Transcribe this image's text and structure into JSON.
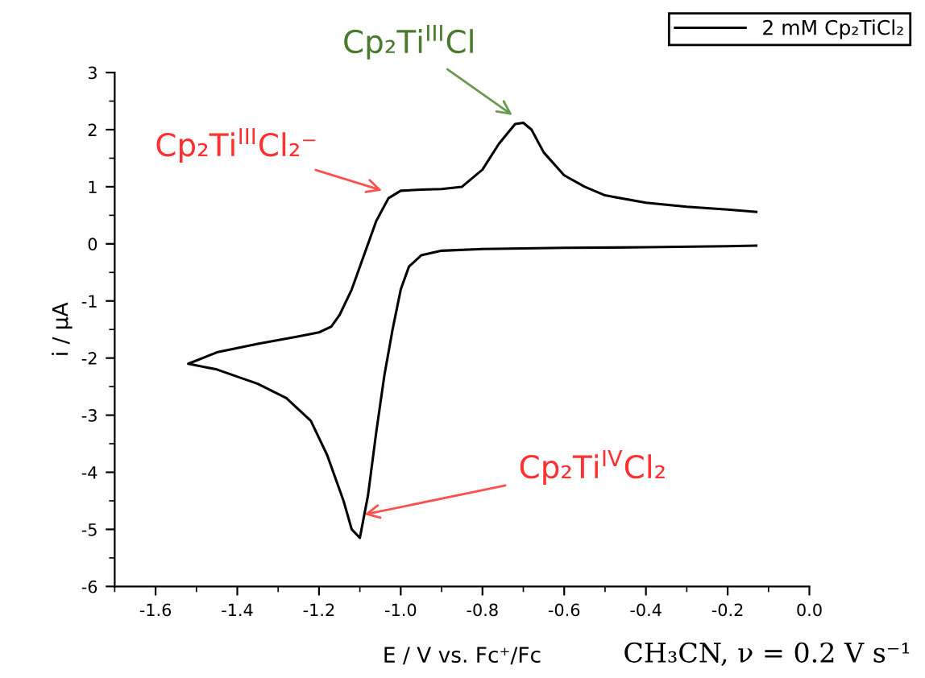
{
  "chart_data": {
    "type": "line",
    "xlabel": "E / V vs. Fc⁺/Fc",
    "ylabel": "i / μA",
    "series": [
      {
        "name": "2 mM Cp₂TiCl₂",
        "color": "#000000",
        "x": [
          -0.13,
          -0.2,
          -0.4,
          -0.6,
          -0.8,
          -0.9,
          -0.95,
          -0.98,
          -1.0,
          -1.02,
          -1.04,
          -1.06,
          -1.08,
          -1.1,
          -1.12,
          -1.14,
          -1.18,
          -1.22,
          -1.28,
          -1.35,
          -1.45,
          -1.52,
          -1.45,
          -1.35,
          -1.25,
          -1.2,
          -1.17,
          -1.15,
          -1.12,
          -1.09,
          -1.06,
          -1.03,
          -1.0,
          -0.95,
          -0.9,
          -0.85,
          -0.8,
          -0.76,
          -0.72,
          -0.7,
          -0.68,
          -0.65,
          -0.6,
          -0.55,
          -0.5,
          -0.4,
          -0.3,
          -0.2,
          -0.13
        ],
        "values": [
          -0.03,
          -0.04,
          -0.06,
          -0.07,
          -0.09,
          -0.12,
          -0.2,
          -0.4,
          -0.8,
          -1.5,
          -2.3,
          -3.3,
          -4.4,
          -5.15,
          -5.0,
          -4.5,
          -3.7,
          -3.1,
          -2.7,
          -2.45,
          -2.2,
          -2.1,
          -1.9,
          -1.75,
          -1.62,
          -1.55,
          -1.45,
          -1.25,
          -0.8,
          -0.2,
          0.4,
          0.8,
          0.93,
          0.95,
          0.96,
          1.0,
          1.3,
          1.75,
          2.1,
          2.12,
          2.0,
          1.6,
          1.2,
          1.0,
          0.85,
          0.72,
          0.65,
          0.6,
          0.56
        ]
      }
    ],
    "xlim": [
      -1.7,
      0.0
    ],
    "xticks": [
      -1.6,
      -1.4,
      -1.2,
      {
        "value": -1.0,
        "label": "-1.0"
      },
      -0.8,
      -0.6,
      -0.4,
      -0.2,
      {
        "value": 0.0,
        "label": "0.0"
      }
    ],
    "ylim": [
      -6,
      3
    ],
    "yticks": [
      -6,
      -5,
      -4,
      -3,
      -2,
      -1,
      0,
      1,
      2,
      3
    ],
    "legend": "top right",
    "grid": false,
    "marker": "none",
    "line_style": "solid",
    "annotations": [
      {
        "text": "Cp₂Ti$^{III}$Cl",
        "x": -0.7,
        "y": 2.12
      },
      {
        "text": "Cp₂Ti$^{III}$Cl₂⁻",
        "x": -1.03,
        "y": 0.9
      },
      {
        "text": "Cp₂Ti$^{IV}$Cl₂",
        "x": -1.089,
        "y": -4.74
      },
      "CH₃CN, ν = 0.2 V s⁻¹"
    ]
  }
}
